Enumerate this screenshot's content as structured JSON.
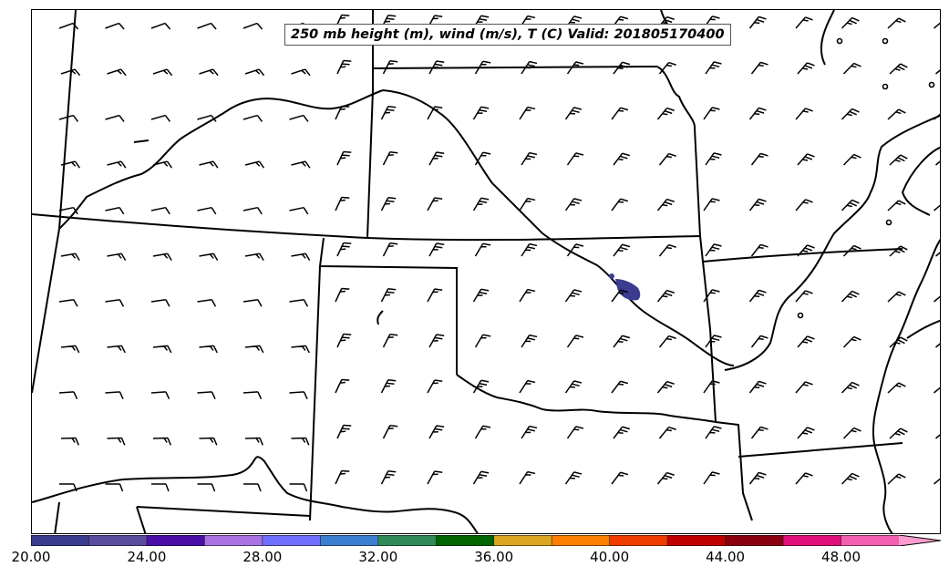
{
  "title": "250 mb height (m), wind (m/s), T (C) Valid: 201805170400",
  "colorbar": {
    "min": 20,
    "max": 51,
    "step": 2,
    "extend": "max",
    "colors": [
      "#3b3b8f",
      "#5a4d9e",
      "#4b0fa8",
      "#a872e0",
      "#6f6fff",
      "#3b7fd0",
      "#2e8b57",
      "#006400",
      "#daa520",
      "#ff7f00",
      "#ee3b00",
      "#c00000",
      "#8b0010",
      "#e0107a",
      "#f25fb0",
      "#ff9ccf"
    ],
    "tick_labels": [
      "20.00",
      "24.00",
      "28.00",
      "32.00",
      "36.00",
      "40.00",
      "44.00",
      "48.00"
    ]
  },
  "map": {
    "region": "Central United States (Kansas / Oklahoma / Missouri / Texas panhandle)",
    "temperature_feature": {
      "label": "isolated shaded temperature cell over north-central Oklahoma",
      "color": "#3b3b8f"
    },
    "barbs": {
      "style": "half and full barbs, predominantly westerly to northwesterly flow"
    }
  }
}
